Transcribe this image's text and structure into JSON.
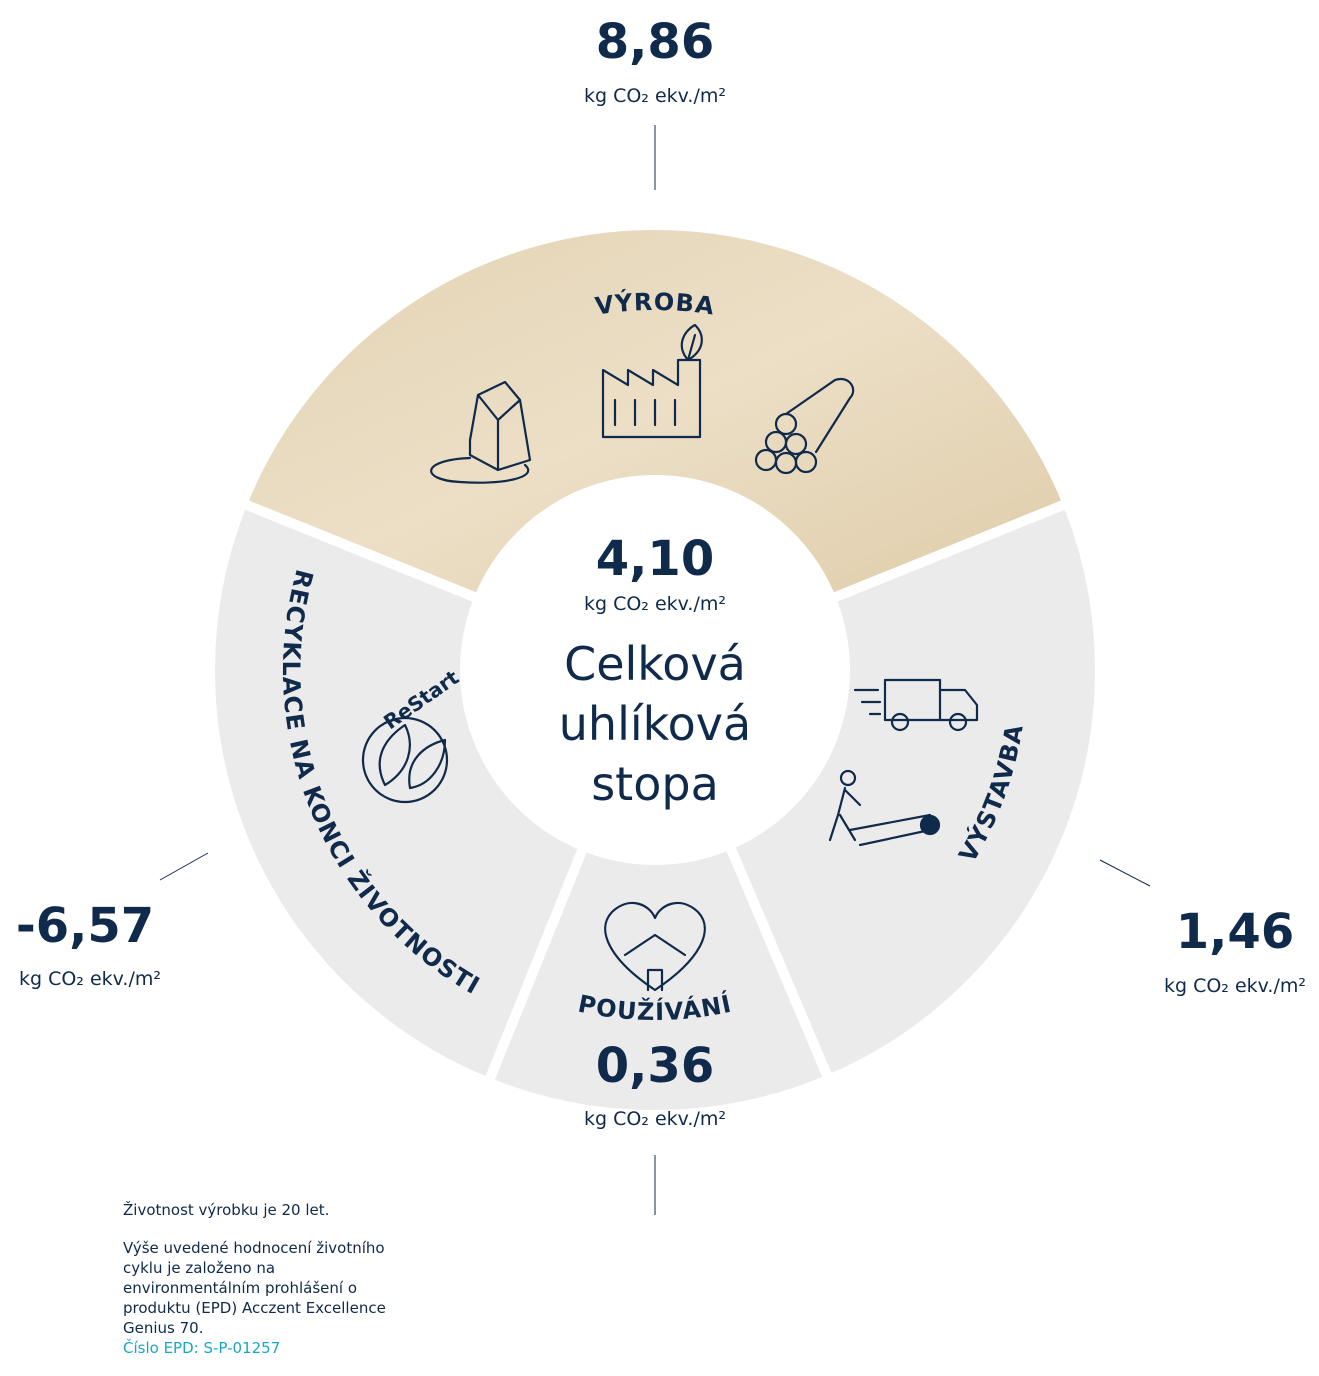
{
  "center": {
    "value": "4,10",
    "unit": "kg CO₂ ekv./m²",
    "label_lines": [
      "Celková",
      "uhlíková",
      "stopa"
    ]
  },
  "segments": [
    {
      "name": "VÝROBA",
      "value": "8,86",
      "unit": "kg CO₂ ekv./m²"
    },
    {
      "name": "VÝSTAVBA",
      "value": "1,46",
      "unit": "kg CO₂ ekv./m²"
    },
    {
      "name": "POUŽÍVÁNÍ",
      "value": "0,36",
      "unit": "kg CO₂ ekv./m²"
    },
    {
      "name": "RECYKLACE NA KONCI ŽIVOTNOSTI",
      "value": "-6,57",
      "unit": "kg CO₂ ekv./m²"
    }
  ],
  "restart_logo": "ReStart",
  "footnote": {
    "lifetime": "Životnost výrobku je 20 let.",
    "description": "Výše uvedené hodnocení životního cyklu je založeno na environmentálním prohlášení o produktu (EPD) Acczent Excellence Genius 70.",
    "link": "Číslo EPD: S-P-01257"
  }
}
